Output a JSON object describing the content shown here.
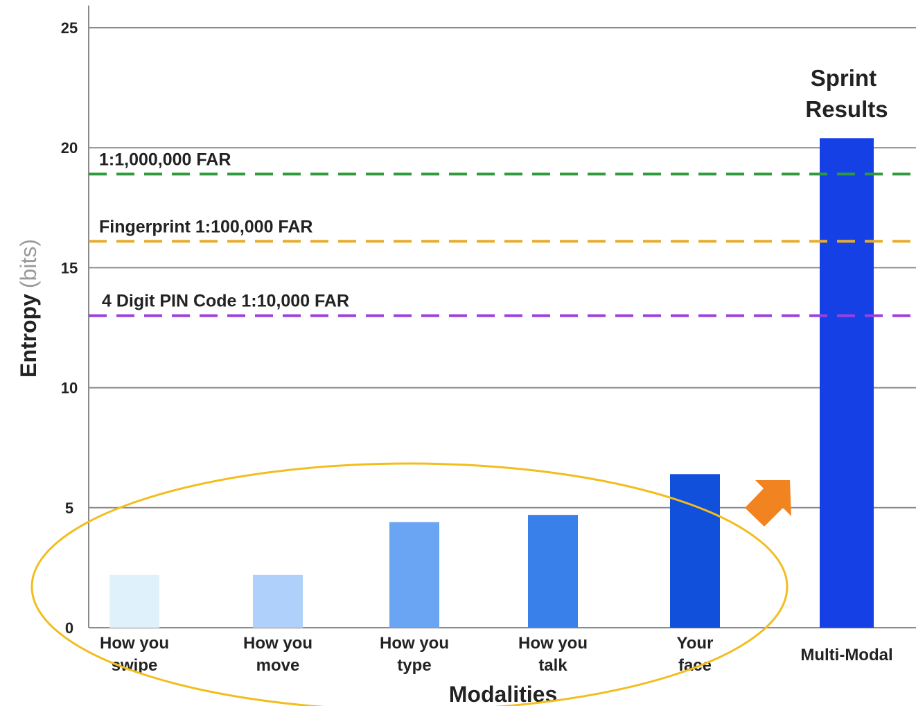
{
  "chart_data": {
    "type": "bar",
    "xlabel": "Modalities",
    "ylabel": "Entropy",
    "ylabel_unit": "(bits)",
    "ylim": [
      0,
      25
    ],
    "yticks": [
      0,
      5,
      10,
      15,
      20,
      25
    ],
    "grid": true,
    "categories": [
      {
        "lines": [
          "How you",
          "swipe"
        ],
        "value": 2.2,
        "color": "#dff2fb"
      },
      {
        "lines": [
          "How you",
          "move"
        ],
        "value": 2.2,
        "color": "#aed0fa"
      },
      {
        "lines": [
          "How you",
          "type"
        ],
        "value": 4.4,
        "color": "#6aa5f4"
      },
      {
        "lines": [
          "How you",
          "talk"
        ],
        "value": 4.7,
        "color": "#3a80ea"
      },
      {
        "lines": [
          "Your",
          "face"
        ],
        "value": 6.4,
        "color": "#1150da"
      },
      {
        "lines": [
          "Multi-Modal"
        ],
        "value": 20.4,
        "color": "#1540e6"
      }
    ],
    "reference_lines": [
      {
        "label": "1:1,000,000 FAR",
        "value": 18.9,
        "color": "#2e9a3c"
      },
      {
        "label": "Fingerprint 1:100,000 FAR",
        "value": 16.1,
        "color": "#e8ac2e"
      },
      {
        "label": "4 Digit PIN Code 1:10,000 FAR",
        "value": 13.0,
        "color": "#9a3fe0"
      }
    ],
    "annotations": {
      "multi_modal_label": [
        "Sprint",
        "Results"
      ],
      "ellipse_color": "#f2bd1d",
      "arrow_color": "#f28321"
    }
  }
}
